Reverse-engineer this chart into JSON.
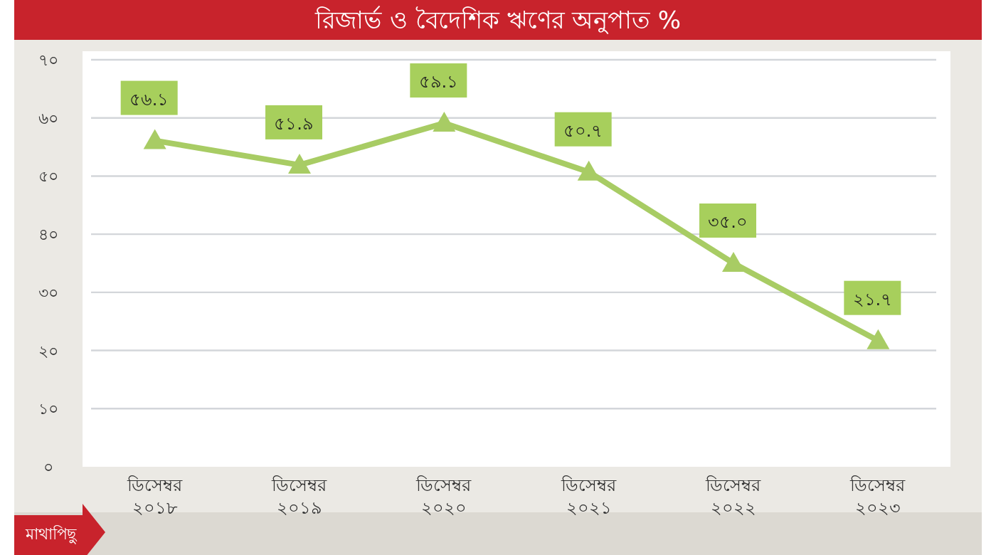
{
  "chart_data": {
    "type": "line",
    "title": "রিজার্ভ ও বৈদেশিক ঋণের অনুপাত %",
    "categories": [
      "ডিসেম্বর ২০১৮",
      "ডিসেম্বর ২০১৯",
      "ডিসেম্বর ২০২০",
      "ডিসেম্বর ২০২১",
      "ডিসেম্বর ২০২২",
      "ডিসেম্বর ২০২৩"
    ],
    "values": [
      56.1,
      51.9,
      59.1,
      50.7,
      35.0,
      21.7
    ],
    "value_labels": [
      "৫৬.১",
      "৫১.৯",
      "৫৯.১",
      "৫০.৭",
      "৩৫.০",
      "২১.৭"
    ],
    "color": "#a8cc64",
    "marker": "triangle",
    "grid": "y",
    "ylim": [
      0,
      70
    ],
    "yticks": [
      {
        "value": 0,
        "label": "০"
      },
      {
        "value": 10,
        "label": "১০"
      },
      {
        "value": 20,
        "label": "২০"
      },
      {
        "value": 30,
        "label": "৩০"
      },
      {
        "value": 40,
        "label": "৪০"
      },
      {
        "value": 50,
        "label": "৫০"
      },
      {
        "value": 60,
        "label": "৬০"
      },
      {
        "value": 70,
        "label": "৭০"
      }
    ],
    "annotations": [
      "মাথাপিছু"
    ]
  }
}
